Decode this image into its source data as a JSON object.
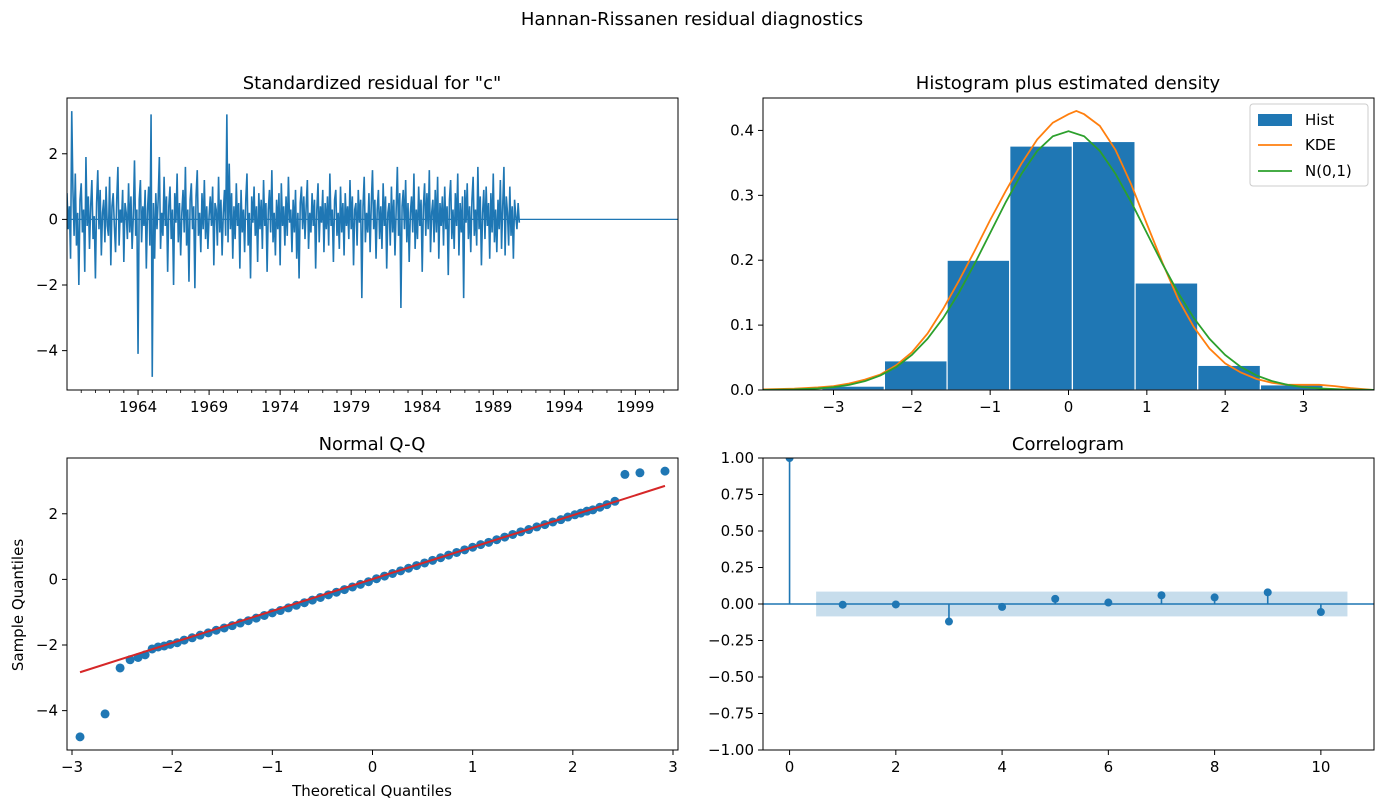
{
  "figure": {
    "suptitle": "Hannan-Rissanen residual diagnostics"
  },
  "colors": {
    "series_blue": "#1f77b4",
    "kde_orange": "#ff7f0e",
    "normal_green": "#2ca02c",
    "qq_line_red": "#d62728",
    "conf_band": "#1f77b4"
  },
  "chart_data": [
    {
      "id": "resid",
      "type": "line",
      "title": "Standardized residual for \"c\"",
      "xlabel": "",
      "ylabel": "",
      "xlim": [
        1959.0,
        2002.0
      ],
      "ylim": [
        -5.2,
        3.7
      ],
      "x_ticks": [
        1964,
        1969,
        1974,
        1979,
        1984,
        1989,
        1994,
        1999
      ],
      "x_tick_labels": [
        "1964",
        "1969",
        "1974",
        "1979",
        "1984",
        "1989",
        "1994",
        "1999"
      ],
      "y_ticks": [
        -4,
        -2,
        0,
        2
      ],
      "y_tick_labels": [
        "−4",
        "−2",
        "0",
        "2"
      ],
      "baseline": 0,
      "series": [
        {
          "x_start": 1959.0,
          "x_step": 0.08333,
          "values": [
            0.8,
            -0.3,
            0.4,
            -1.2,
            3.3,
            0.9,
            -0.5,
            1.4,
            -0.8,
            0.2,
            -2.0,
            0.6,
            1.1,
            -0.4,
            0.3,
            -1.6,
            1.9,
            -0.2,
            0.7,
            -0.9,
            0.4,
            1.2,
            -0.6,
            0.1,
            -1.8,
            0.5,
            1.5,
            -0.3,
            0.9,
            -1.1,
            0.2,
            0.6,
            -0.7,
            1.0,
            -0.2,
            -0.5,
            1.3,
            -1.4,
            0.4,
            0.8,
            -0.2,
            -1.0,
            0.6,
            1.6,
            -0.8,
            0.3,
            -0.1,
            0.9,
            -1.3,
            0.5,
            0.2,
            -0.6,
            1.1,
            -0.4,
            0.7,
            -0.9,
            0.1,
            1.8,
            -0.5,
            0.3,
            -4.1,
            0.6,
            1.2,
            -0.7,
            0.4,
            -0.2,
            0.9,
            -1.5,
            0.3,
            1.0,
            -0.8,
            3.2,
            -4.8,
            0.5,
            -1.2,
            0.8,
            -0.3,
            0.6,
            1.9,
            -0.9,
            0.2,
            -0.5,
            1.3,
            -0.2,
            0.7,
            -1.6,
            0.4,
            1.0,
            -0.6,
            0.3,
            -2.0,
            0.8,
            -0.1,
            1.4,
            -0.7,
            0.5,
            -1.1,
            0.2,
            0.9,
            -0.4,
            1.6,
            -0.8,
            0.3,
            -1.9,
            0.6,
            1.1,
            -0.3,
            0.4,
            -2.1,
            0.7,
            1.5,
            -0.5,
            0.2,
            -1.0,
            0.8,
            -0.3,
            1.2,
            -0.6,
            0.4,
            -0.9,
            0.1,
            0.7,
            -0.2,
            1.0,
            -1.4,
            0.5,
            0.3,
            -0.8,
            1.3,
            -0.4,
            0.6,
            -1.1,
            0.2,
            0.9,
            -0.5,
            3.2,
            -0.7,
            1.7,
            -0.3,
            0.8,
            -1.2,
            0.4,
            -0.6,
            1.1,
            -0.2,
            0.5,
            -1.5,
            0.9,
            -0.4,
            0.3,
            -1.0,
            0.6,
            1.4,
            -0.8,
            0.2,
            -1.8,
            0.7,
            -0.1,
            1.0,
            -0.5,
            0.4,
            -1.3,
            0.8,
            -0.3,
            0.6,
            -0.9,
            1.2,
            -0.2,
            0.5,
            -1.6,
            0.3,
            0.9,
            -0.4,
            1.5,
            -0.7,
            0.2,
            -1.1,
            0.6,
            -0.3,
            0.8,
            -1.4,
            1.1,
            -0.2,
            0.4,
            -0.8,
            0.7,
            -0.5,
            1.3,
            -0.1,
            0.3,
            -1.0,
            0.6,
            -0.4,
            0.9,
            -1.2,
            0.2,
            -1.8,
            0.5,
            1.0,
            -0.3,
            0.7,
            -0.6,
            0.4,
            1.2,
            -0.9,
            0.2,
            -0.4,
            0.8,
            -0.2,
            0.6,
            -1.5,
            0.3,
            1.1,
            -0.7,
            0.4,
            -0.1,
            0.9,
            -1.0,
            0.5,
            -0.3,
            0.7,
            -0.8,
            1.4,
            -0.2,
            0.3,
            -1.3,
            0.6,
            0.9,
            -0.5,
            0.2,
            -0.9,
            1.0,
            -0.4,
            0.5,
            -1.1,
            0.8,
            -0.2,
            0.4,
            -0.6,
            1.2,
            -0.3,
            0.7,
            -1.4,
            0.3,
            0.5,
            -0.8,
            0.9,
            -0.1,
            0.6,
            -2.4,
            0.4,
            1.3,
            -0.7,
            0.2,
            -0.4,
            0.8,
            -1.0,
            0.5,
            1.5,
            -0.3,
            0.6,
            -1.2,
            0.3,
            0.9,
            -0.6,
            0.4,
            -0.9,
            1.1,
            -0.2,
            0.7,
            -1.5,
            0.2,
            0.5,
            -0.8,
            1.0,
            -0.4,
            0.6,
            -1.1,
            0.3,
            1.6,
            -0.5,
            0.8,
            -2.7,
            0.4,
            0.9,
            -0.3,
            1.2,
            -0.7,
            0.5,
            -1.3,
            0.2,
            0.7,
            -0.4,
            1.4,
            -0.9,
            0.3,
            -0.6,
            1.0,
            -0.2,
            0.6,
            -1.6,
            0.4,
            1.1,
            -0.5,
            0.8,
            -0.3,
            1.5,
            -1.0,
            0.2,
            0.6,
            -0.7,
            0.9,
            -0.4,
            1.3,
            -1.2,
            0.5,
            -0.2,
            0.7,
            -0.8,
            1.0,
            -0.3,
            0.4,
            -1.7,
            0.6,
            1.2,
            -0.6,
            0.3,
            -0.9,
            0.8,
            -0.2,
            1.4,
            -1.1,
            0.5,
            -0.4,
            0.7,
            -2.4,
            0.9,
            -0.1,
            1.1,
            -0.6,
            0.4,
            -1.0,
            0.6,
            1.3,
            -0.5,
            0.3,
            -0.8,
            1.6,
            -0.3,
            0.7,
            -1.4,
            0.2,
            0.9,
            -0.6,
            1.0,
            -0.2,
            0.5,
            -1.2,
            0.8,
            -0.4,
            1.4,
            -0.7,
            0.3,
            -1.0,
            0.6,
            -0.3,
            1.2,
            -0.9,
            0.4,
            1.6,
            -1.1,
            0.7,
            0.2,
            -0.8,
            1.0,
            -0.5,
            0.4,
            -1.2,
            0.6,
            0.1,
            -0.3,
            0.5,
            -0.1
          ]
        }
      ]
    },
    {
      "id": "hist",
      "type": "bar",
      "title": "Histogram plus estimated density",
      "xlabel": "",
      "ylabel": "",
      "xlim": [
        -3.9,
        3.9
      ],
      "ylim": [
        0,
        0.45
      ],
      "x_ticks": [
        -3,
        -2,
        -1,
        0,
        1,
        2,
        3
      ],
      "x_tick_labels": [
        "−3",
        "−2",
        "−1",
        "0",
        "1",
        "2",
        "3"
      ],
      "y_ticks": [
        0.0,
        0.1,
        0.2,
        0.3,
        0.4
      ],
      "y_tick_labels": [
        "0.0",
        "0.1",
        "0.2",
        "0.3",
        "0.4"
      ],
      "legend_position": "top-right",
      "bins": [
        {
          "x0": -3.15,
          "x1": -2.35,
          "value": 0.006
        },
        {
          "x0": -2.35,
          "x1": -1.55,
          "value": 0.045
        },
        {
          "x0": -1.55,
          "x1": -0.75,
          "value": 0.2
        },
        {
          "x0": -0.75,
          "x1": 0.05,
          "value": 0.376
        },
        {
          "x0": 0.05,
          "x1": 0.85,
          "value": 0.383
        },
        {
          "x0": 0.85,
          "x1": 1.65,
          "value": 0.165
        },
        {
          "x0": 1.65,
          "x1": 2.45,
          "value": 0.038
        },
        {
          "x0": 2.45,
          "x1": 3.25,
          "value": 0.008
        }
      ],
      "series": [
        {
          "name": "Hist",
          "kind": "bar"
        },
        {
          "name": "KDE",
          "kind": "line",
          "x": [
            -3.9,
            -3.5,
            -3.2,
            -3.0,
            -2.8,
            -2.6,
            -2.4,
            -2.2,
            -2.0,
            -1.8,
            -1.6,
            -1.4,
            -1.2,
            -1.0,
            -0.8,
            -0.6,
            -0.4,
            -0.2,
            0.0,
            0.1,
            0.2,
            0.4,
            0.6,
            0.8,
            1.0,
            1.2,
            1.4,
            1.6,
            1.8,
            2.0,
            2.2,
            2.4,
            2.6,
            2.8,
            3.0,
            3.2,
            3.4,
            3.6,
            3.9
          ],
          "y": [
            0.001,
            0.002,
            0.004,
            0.006,
            0.01,
            0.016,
            0.024,
            0.038,
            0.058,
            0.087,
            0.125,
            0.168,
            0.214,
            0.262,
            0.307,
            0.349,
            0.386,
            0.412,
            0.425,
            0.43,
            0.425,
            0.407,
            0.37,
            0.317,
            0.256,
            0.196,
            0.14,
            0.097,
            0.064,
            0.041,
            0.027,
            0.017,
            0.011,
            0.008,
            0.008,
            0.008,
            0.006,
            0.003,
            0.0
          ]
        },
        {
          "name": "N(0,1)",
          "kind": "line",
          "x": [
            -3.9,
            -3.5,
            -3.2,
            -3.0,
            -2.8,
            -2.6,
            -2.4,
            -2.2,
            -2.0,
            -1.8,
            -1.6,
            -1.4,
            -1.2,
            -1.0,
            -0.8,
            -0.6,
            -0.4,
            -0.2,
            0.0,
            0.2,
            0.4,
            0.6,
            0.8,
            1.0,
            1.2,
            1.4,
            1.6,
            1.8,
            2.0,
            2.2,
            2.4,
            2.6,
            2.8,
            3.0,
            3.2,
            3.5,
            3.9
          ],
          "y": [
            0.0002,
            0.0009,
            0.0024,
            0.0044,
            0.0079,
            0.0136,
            0.0224,
            0.0355,
            0.054,
            0.079,
            0.1109,
            0.1497,
            0.1942,
            0.242,
            0.2897,
            0.3332,
            0.3683,
            0.391,
            0.3989,
            0.391,
            0.3683,
            0.3332,
            0.2897,
            0.242,
            0.1942,
            0.1497,
            0.1109,
            0.079,
            0.054,
            0.0355,
            0.0224,
            0.0136,
            0.0079,
            0.0044,
            0.0024,
            0.0009,
            0.0002
          ]
        }
      ]
    },
    {
      "id": "qq",
      "type": "scatter",
      "title": "Normal Q-Q",
      "xlabel": "Theoretical Quantiles",
      "ylabel": "Sample Quantiles",
      "xlim": [
        -3.05,
        3.05
      ],
      "ylim": [
        -5.2,
        3.7
      ],
      "x_ticks": [
        -3,
        -2,
        -1,
        0,
        1,
        2,
        3
      ],
      "x_tick_labels": [
        "−3",
        "−2",
        "−1",
        "0",
        "1",
        "2",
        "3"
      ],
      "y_ticks": [
        -4,
        -2,
        0,
        2
      ],
      "y_tick_labels": [
        "−4",
        "−2",
        "0",
        "2"
      ],
      "reference_line": {
        "x": [
          -2.92,
          2.92
        ],
        "y": [
          -2.83,
          2.85
        ]
      },
      "points": {
        "x": [
          -2.92,
          -2.67,
          -2.52,
          -2.42,
          -2.34,
          -2.27,
          -2.2,
          -2.14,
          -2.08,
          -2.02,
          -1.95,
          -1.88,
          -1.8,
          -1.72,
          -1.64,
          -1.56,
          -1.48,
          -1.4,
          -1.32,
          -1.24,
          -1.16,
          -1.08,
          -1.0,
          -0.92,
          -0.84,
          -0.76,
          -0.68,
          -0.6,
          -0.52,
          -0.44,
          -0.36,
          -0.28,
          -0.2,
          -0.12,
          -0.04,
          0.04,
          0.12,
          0.2,
          0.28,
          0.36,
          0.44,
          0.52,
          0.6,
          0.68,
          0.76,
          0.84,
          0.92,
          1.0,
          1.08,
          1.16,
          1.24,
          1.32,
          1.4,
          1.48,
          1.56,
          1.64,
          1.72,
          1.8,
          1.88,
          1.95,
          2.02,
          2.08,
          2.14,
          2.2,
          2.27,
          2.34,
          2.42,
          2.52,
          2.67,
          2.92
        ],
        "y": [
          -4.8,
          -4.1,
          -2.7,
          -2.45,
          -2.38,
          -2.3,
          -2.12,
          -2.06,
          -2.03,
          -1.98,
          -1.93,
          -1.85,
          -1.78,
          -1.7,
          -1.63,
          -1.55,
          -1.48,
          -1.41,
          -1.33,
          -1.26,
          -1.18,
          -1.1,
          -1.02,
          -0.95,
          -0.87,
          -0.79,
          -0.71,
          -0.63,
          -0.55,
          -0.47,
          -0.39,
          -0.31,
          -0.23,
          -0.15,
          -0.07,
          0.02,
          0.1,
          0.18,
          0.26,
          0.34,
          0.42,
          0.5,
          0.58,
          0.66,
          0.74,
          0.82,
          0.9,
          0.98,
          1.06,
          1.13,
          1.21,
          1.29,
          1.37,
          1.45,
          1.52,
          1.6,
          1.67,
          1.75,
          1.82,
          1.9,
          1.97,
          2.02,
          2.08,
          2.12,
          2.2,
          2.28,
          2.38,
          3.2,
          3.25,
          3.3
        ]
      }
    },
    {
      "id": "acf",
      "type": "stem",
      "title": "Correlogram",
      "xlabel": "",
      "ylabel": "",
      "xlim": [
        -0.5,
        11.0
      ],
      "ylim": [
        -1.0,
        1.0
      ],
      "x_ticks": [
        0,
        2,
        4,
        6,
        8,
        10
      ],
      "x_tick_labels": [
        "0",
        "2",
        "4",
        "6",
        "8",
        "10"
      ],
      "y_ticks": [
        -1.0,
        -0.75,
        -0.5,
        -0.25,
        0.0,
        0.25,
        0.5,
        0.75,
        1.0
      ],
      "y_tick_labels": [
        "−1.00",
        "−0.75",
        "−0.50",
        "−0.25",
        "0.00",
        "0.25",
        "0.50",
        "0.75",
        "1.00"
      ],
      "confidence_band": {
        "x0": 0.5,
        "x1": 10.5,
        "value": 0.085
      },
      "lags": [
        0,
        1,
        2,
        3,
        4,
        5,
        6,
        7,
        8,
        9,
        10
      ],
      "values": [
        1.0,
        -0.005,
        -0.003,
        -0.12,
        -0.02,
        0.035,
        0.01,
        0.06,
        0.045,
        0.08,
        -0.055
      ]
    }
  ]
}
